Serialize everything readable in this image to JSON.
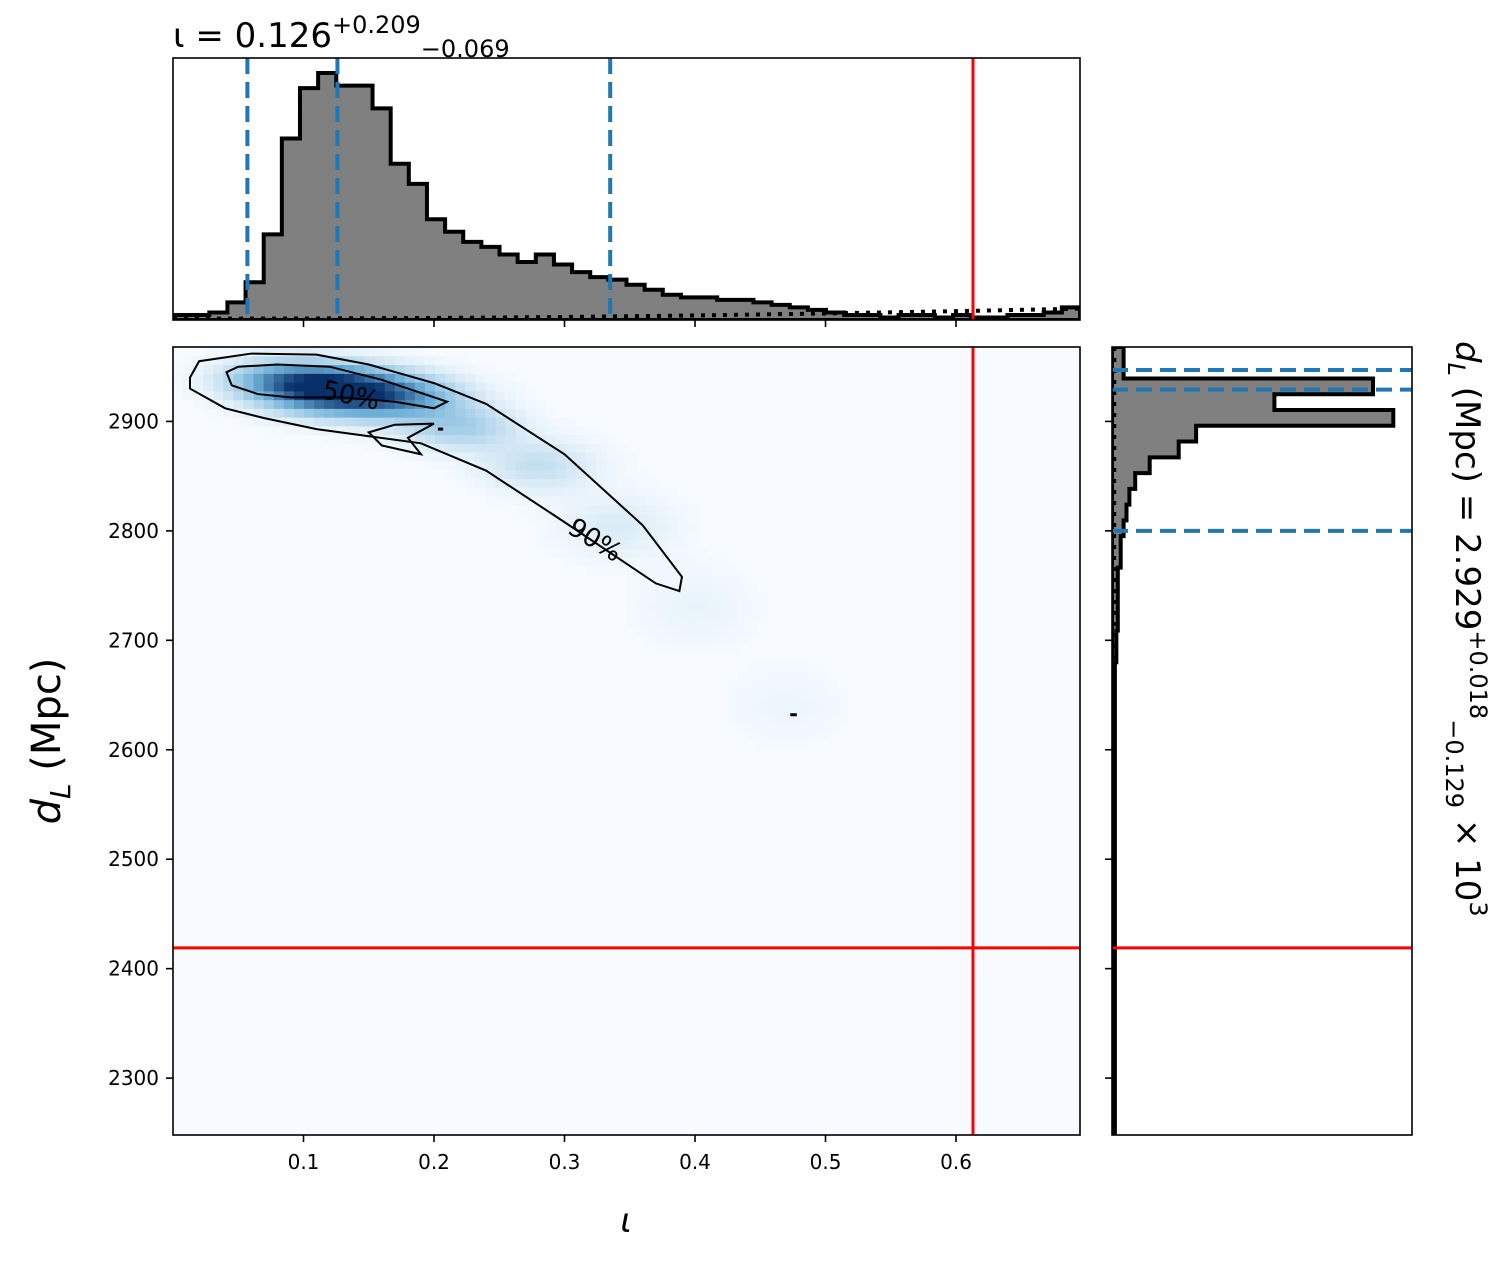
{
  "chart_data": [
    {
      "type": "histogram",
      "panel": "marginal-iota",
      "title": {
        "var": "ι",
        "median": "0.126",
        "plus": "+0.209",
        "minus": "−0.069"
      },
      "xlim": [
        0,
        0.695
      ],
      "bins": {
        "x0": 0.0,
        "width": 0.0139,
        "values": [
          0.02,
          0.02,
          0.03,
          0.07,
          0.15,
          0.34,
          0.72,
          0.92,
          0.98,
          0.93,
          0.93,
          0.84,
          0.62,
          0.54,
          0.4,
          0.35,
          0.31,
          0.29,
          0.26,
          0.23,
          0.26,
          0.22,
          0.19,
          0.17,
          0.16,
          0.14,
          0.12,
          0.1,
          0.09,
          0.09,
          0.08,
          0.08,
          0.07,
          0.06,
          0.05,
          0.04,
          0.03,
          0.02,
          0.02,
          0.01,
          0.02,
          0.02,
          0.01,
          0.02,
          0.01,
          0.01,
          0.02,
          0.02,
          0.03,
          0.05
        ]
      },
      "prior_cdf": [
        [
          0,
          0.005
        ],
        [
          0.1,
          0.006
        ],
        [
          0.2,
          0.008
        ],
        [
          0.3,
          0.012
        ],
        [
          0.4,
          0.018
        ],
        [
          0.5,
          0.026
        ],
        [
          0.6,
          0.035
        ],
        [
          0.695,
          0.045
        ]
      ],
      "quantiles": [
        0.057,
        0.126,
        0.335
      ],
      "truth": 0.613
    },
    {
      "type": "heatmap",
      "panel": "joint-iota-dL",
      "xlabel": "ι",
      "ylabel": "d",
      "ylabel_sub": "L",
      "ylabel_unit": " (Mpc)",
      "xlim": [
        0,
        0.695
      ],
      "ylim": [
        2248,
        2968
      ],
      "xticks": [
        0.1,
        0.2,
        0.3,
        0.4,
        0.5,
        0.6
      ],
      "xtick_labels": [
        "0.1",
        "0.2",
        "0.3",
        "0.4",
        "0.5",
        "0.6"
      ],
      "yticks": [
        2300,
        2400,
        2500,
        2600,
        2700,
        2800,
        2900
      ],
      "ytick_labels": [
        "2300",
        "2400",
        "2500",
        "2600",
        "2700",
        "2800",
        "2900"
      ],
      "density_blobs": [
        {
          "x": 0.12,
          "y": 2930,
          "sx": 0.035,
          "sy": 14,
          "w": 1.0
        },
        {
          "x": 0.17,
          "y": 2922,
          "sx": 0.035,
          "sy": 14,
          "w": 0.55
        },
        {
          "x": 0.08,
          "y": 2940,
          "sx": 0.03,
          "sy": 12,
          "w": 0.35
        },
        {
          "x": 0.22,
          "y": 2895,
          "sx": 0.03,
          "sy": 14,
          "w": 0.28
        },
        {
          "x": 0.28,
          "y": 2860,
          "sx": 0.03,
          "sy": 16,
          "w": 0.18
        },
        {
          "x": 0.34,
          "y": 2805,
          "sx": 0.03,
          "sy": 20,
          "w": 0.1
        },
        {
          "x": 0.4,
          "y": 2730,
          "sx": 0.03,
          "sy": 25,
          "w": 0.05
        },
        {
          "x": 0.47,
          "y": 2640,
          "sx": 0.03,
          "sy": 25,
          "w": 0.035
        }
      ],
      "contours": [
        {
          "label": "50%",
          "label_at": [
            0.135,
            2916
          ],
          "label_rot": 12,
          "points": [
            [
              0.041,
              2945
            ],
            [
              0.05,
              2950
            ],
            [
              0.08,
              2952
            ],
            [
              0.12,
              2950
            ],
            [
              0.16,
              2938
            ],
            [
              0.21,
              2918
            ],
            [
              0.2,
              2912
            ],
            [
              0.17,
              2918
            ],
            [
              0.13,
              2922
            ],
            [
              0.09,
              2922
            ],
            [
              0.065,
              2925
            ],
            [
              0.045,
              2933
            ],
            [
              0.041,
              2945
            ]
          ]
        },
        {
          "label": "90%",
          "label_at": [
            0.32,
            2785
          ],
          "label_rot": 32,
          "points": [
            [
              0.013,
              2940
            ],
            [
              0.02,
              2955
            ],
            [
              0.06,
              2962
            ],
            [
              0.11,
              2961
            ],
            [
              0.15,
              2952
            ],
            [
              0.2,
              2935
            ],
            [
              0.24,
              2916
            ],
            [
              0.3,
              2870
            ],
            [
              0.36,
              2805
            ],
            [
              0.39,
              2758
            ],
            [
              0.388,
              2745
            ],
            [
              0.37,
              2752
            ],
            [
              0.3,
              2808
            ],
            [
              0.24,
              2855
            ],
            [
              0.19,
              2880
            ],
            [
              0.11,
              2893
            ],
            [
              0.07,
              2903
            ],
            [
              0.04,
              2912
            ],
            [
              0.013,
              2930
            ],
            [
              0.013,
              2940
            ]
          ]
        },
        {
          "label": "",
          "points": [
            [
              0.15,
              2890
            ],
            [
              0.17,
              2897
            ],
            [
              0.2,
              2898
            ],
            [
              0.18,
              2885
            ],
            [
              0.19,
              2870
            ],
            [
              0.16,
              2878
            ],
            [
              0.15,
              2890
            ]
          ]
        }
      ],
      "small_segments": [
        [
          [
            0.203,
            2893
          ],
          [
            0.207,
            2893
          ]
        ],
        [
          [
            0.473,
            2632
          ],
          [
            0.478,
            2632
          ]
        ]
      ],
      "truth": {
        "x": 0.613,
        "y": 2419
      }
    },
    {
      "type": "histogram",
      "panel": "marginal-dL",
      "orientation": "horizontal",
      "title": {
        "var": "d",
        "sub": "L",
        "unit": " (Mpc) = ",
        "median": "2.929",
        "plus": "+0.018",
        "minus": "−0.129",
        "scale": " × 10",
        "exp": "3"
      },
      "ylim": [
        2248,
        2968
      ],
      "bins": {
        "y0": 2968,
        "width": 14.4,
        "values": [
          0.04,
          0.04,
          0.9,
          0.56,
          0.97,
          0.29,
          0.23,
          0.13,
          0.08,
          0.06,
          0.05,
          0.04,
          0.03,
          0.03,
          0.02,
          0.02,
          0.02,
          0.02,
          0.015,
          0.015,
          0.01,
          0.01,
          0.01,
          0.01,
          0.01,
          0.01,
          0.01,
          0.01,
          0.01,
          0.01,
          0.01,
          0.01,
          0.01,
          0.01,
          0.01,
          0.01,
          0.01,
          0.01,
          0.01,
          0.01,
          0.01,
          0.01,
          0.01,
          0.01,
          0.01,
          0.01,
          0.01,
          0.01,
          0.01,
          0.01
        ]
      },
      "prior_cdf": [
        [
          2968,
          0.008
        ],
        [
          2700,
          0.007
        ],
        [
          2500,
          0.006
        ],
        [
          2248,
          0.005
        ]
      ],
      "quantiles": [
        2800,
        2929,
        2947
      ],
      "truth": 2419
    }
  ],
  "colors": {
    "hist_fill": "#808080",
    "quantile": "#1f77b4",
    "truth": "#ff0000",
    "cmap_low": "#f7fbff",
    "cmap_high": "#08306b"
  }
}
